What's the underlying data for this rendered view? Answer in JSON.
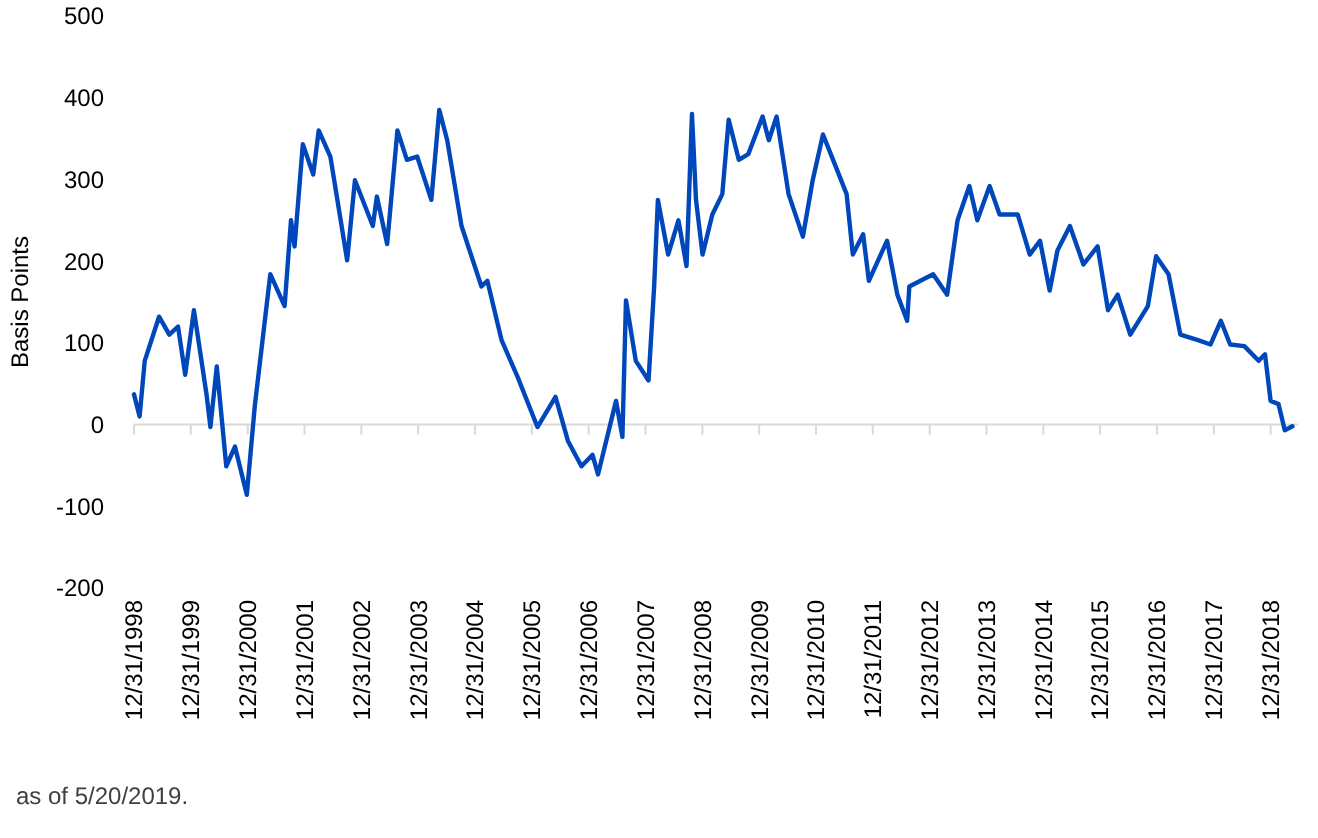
{
  "chart_data": {
    "type": "line",
    "ylabel": "Basis Points",
    "annotations": [
      "as of 5/20/2019."
    ],
    "xlim": [
      "1998-12-31",
      "2019-06-25"
    ],
    "xticks": [
      {
        "value": "1998-12-31",
        "label": "12/31/1998"
      },
      {
        "value": "1999-12-31",
        "label": "12/31/1999"
      },
      {
        "value": "2000-12-31",
        "label": "12/31/2000"
      },
      {
        "value": "2001-12-31",
        "label": "12/31/2001"
      },
      {
        "value": "2002-12-31",
        "label": "12/31/2002"
      },
      {
        "value": "2003-12-31",
        "label": "12/31/2003"
      },
      {
        "value": "2004-12-31",
        "label": "12/31/2004"
      },
      {
        "value": "2005-12-31",
        "label": "12/31/2005"
      },
      {
        "value": "2006-12-31",
        "label": "12/31/2006"
      },
      {
        "value": "2007-12-31",
        "label": "12/31/2007"
      },
      {
        "value": "2008-12-31",
        "label": "12/31/2008"
      },
      {
        "value": "2009-12-31",
        "label": "12/31/2009"
      },
      {
        "value": "2010-12-31",
        "label": "12/31/2010"
      },
      {
        "value": "2011-12-31",
        "label": "12/31/2011"
      },
      {
        "value": "2012-12-31",
        "label": "12/31/2012"
      },
      {
        "value": "2013-12-31",
        "label": "12/31/2013"
      },
      {
        "value": "2014-12-31",
        "label": "12/31/2014"
      },
      {
        "value": "2015-12-31",
        "label": "12/31/2015"
      },
      {
        "value": "2016-12-31",
        "label": "12/31/2016"
      },
      {
        "value": "2017-12-31",
        "label": "12/31/2017"
      },
      {
        "value": "2018-12-31",
        "label": "12/31/2018"
      }
    ],
    "ylim": [
      -200,
      500
    ],
    "yticks": [
      -200,
      -100,
      0,
      100,
      200,
      300,
      400,
      500
    ],
    "marker": "none",
    "line_style": "solid",
    "x": [
      "1998-12-31",
      "1999-02-05",
      "1999-03-10",
      "1999-06-10",
      "1999-08-15",
      "1999-10-10",
      "1999-11-25",
      "2000-01-20",
      "2000-04-10",
      "2000-05-05",
      "2000-06-15",
      "2000-08-15",
      "2000-10-10",
      "2000-12-25",
      "2001-02-14",
      "2001-05-25",
      "2001-08-25",
      "2001-10-05",
      "2001-10-28",
      "2001-12-20",
      "2002-02-25",
      "2002-04-01",
      "2002-06-15",
      "2002-10-01",
      "2002-11-20",
      "2003-03-15",
      "2003-04-10",
      "2003-06-15",
      "2003-08-20",
      "2003-10-20",
      "2003-12-25",
      "2004-03-25",
      "2004-05-15",
      "2004-07-05",
      "2004-10-05",
      "2005-02-10",
      "2005-03-20",
      "2005-06-20",
      "2005-10-01",
      "2006-02-05",
      "2006-06-01",
      "2006-08-20",
      "2006-11-15",
      "2007-01-25",
      "2007-03-01",
      "2007-06-25",
      "2007-08-05",
      "2007-08-28",
      "2007-10-30",
      "2008-01-20",
      "2008-02-25",
      "2008-03-20",
      "2008-05-25",
      "2008-07-30",
      "2008-09-20",
      "2008-10-25",
      "2008-11-20",
      "2009-01-01",
      "2009-03-05",
      "2009-05-08",
      "2009-06-18",
      "2009-08-22",
      "2009-10-22",
      "2010-01-22",
      "2010-03-03",
      "2010-04-22",
      "2010-07-08",
      "2010-10-08",
      "2010-12-10",
      "2011-02-14",
      "2011-04-20",
      "2011-07-16",
      "2011-08-25",
      "2011-10-30",
      "2011-12-06",
      "2012-04-01",
      "2012-06-06",
      "2012-08-08",
      "2012-08-22",
      "2013-01-22",
      "2013-04-22",
      "2013-06-28",
      "2013-09-12",
      "2013-11-02",
      "2014-01-20",
      "2014-03-25",
      "2014-07-20",
      "2014-10-05",
      "2014-12-10",
      "2015-02-10",
      "2015-04-01",
      "2015-06-20",
      "2015-09-15",
      "2015-12-15",
      "2016-02-20",
      "2016-04-22",
      "2016-07-12",
      "2016-11-02",
      "2016-12-25",
      "2017-03-15",
      "2017-05-30",
      "2017-09-25",
      "2017-12-10",
      "2018-02-14",
      "2018-04-15",
      "2018-07-15",
      "2018-10-15",
      "2018-11-25",
      "2018-12-31",
      "2019-02-20",
      "2019-04-01",
      "2019-05-20"
    ],
    "series": [
      {
        "color": "#0047bb",
        "values": [
          37,
          10,
          78,
          132,
          110,
          120,
          61,
          140,
          37,
          -3,
          71,
          -51,
          -27,
          -86,
          22,
          184,
          145,
          250,
          218,
          343,
          306,
          360,
          328,
          201,
          299,
          243,
          279,
          221,
          360,
          324,
          328,
          275,
          385,
          348,
          243,
          169,
          176,
          103,
          58,
          -3,
          34,
          -20,
          -51,
          -37,
          -61,
          29,
          -15,
          152,
          78,
          54,
          169,
          275,
          208,
          250,
          194,
          380,
          275,
          208,
          257,
          282,
          373,
          324,
          331,
          377,
          348,
          377,
          282,
          230,
          299,
          355,
          324,
          282,
          208,
          233,
          176,
          225,
          159,
          127,
          169,
          184,
          159,
          250,
          292,
          250,
          292,
          257,
          257,
          208,
          225,
          164,
          213,
          243,
          196,
          218,
          140,
          159,
          110,
          145,
          206,
          184,
          110,
          103,
          98,
          127,
          98,
          96,
          78,
          86,
          29,
          25,
          -7,
          -2
        ]
      }
    ]
  }
}
